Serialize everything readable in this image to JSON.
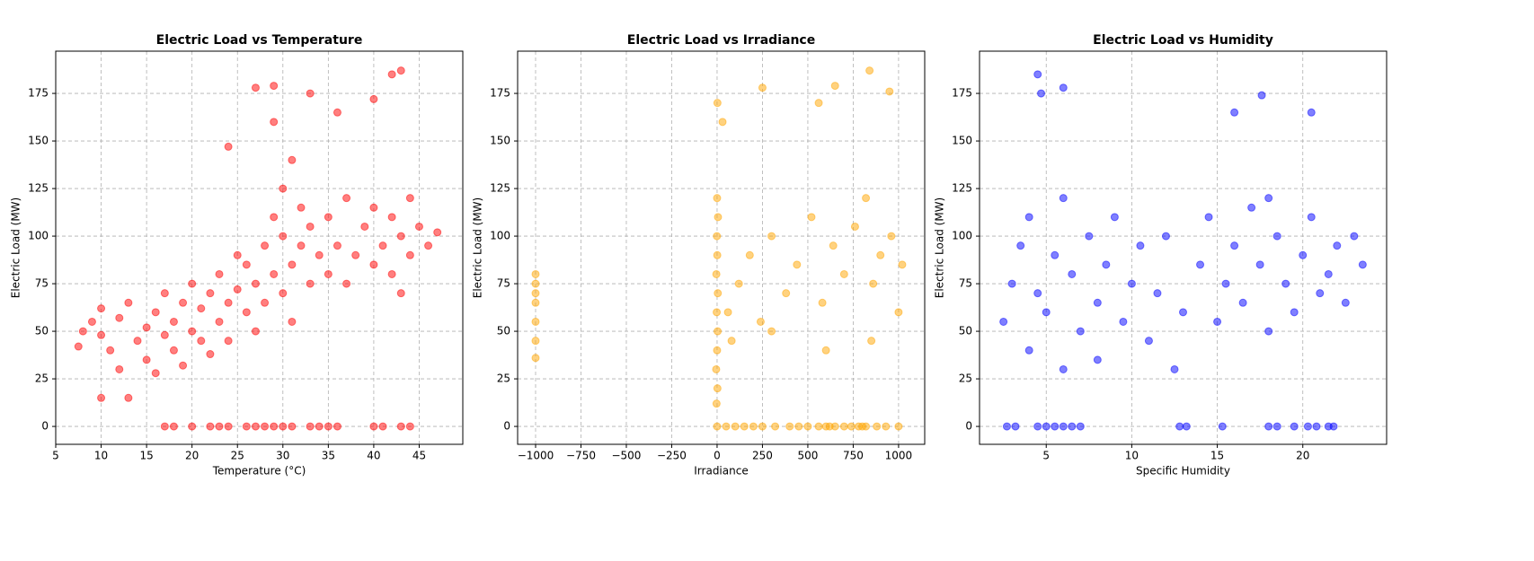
{
  "chart_data": [
    {
      "type": "scatter",
      "title": "Electric Load vs Temperature",
      "xlabel": "Temperature (°C)",
      "ylabel": "Electric Load (MW)",
      "color": "#ff0000",
      "grid": true,
      "xlim": [
        5,
        49.8
      ],
      "ylim": [
        -9.4,
        197.2
      ],
      "xticks": [
        5,
        10,
        15,
        20,
        25,
        30,
        35,
        40,
        45
      ],
      "yticks": [
        0,
        25,
        50,
        75,
        100,
        125,
        150,
        175
      ],
      "x": [
        17,
        18,
        20,
        22,
        23,
        24,
        26,
        27,
        28,
        29,
        30,
        31,
        33,
        34,
        35,
        36,
        40,
        41,
        43,
        44,
        7.5,
        8,
        9,
        10,
        10,
        11,
        12,
        12,
        13,
        14,
        15,
        15,
        16,
        16,
        17,
        17,
        18,
        18,
        19,
        19,
        20,
        20,
        21,
        21,
        22,
        22,
        23,
        23,
        24,
        24,
        25,
        25,
        26,
        26,
        27,
        27,
        28,
        28,
        29,
        29,
        30,
        30,
        30,
        31,
        31,
        32,
        32,
        33,
        33,
        34,
        35,
        35,
        36,
        37,
        37,
        38,
        39,
        40,
        40,
        41,
        42,
        42,
        43,
        43,
        44,
        44,
        45,
        46,
        47,
        10,
        13,
        27,
        29,
        29,
        33,
        36,
        42,
        43,
        40,
        24,
        31
      ],
      "values": [
        0,
        0,
        0,
        0,
        0,
        0,
        0,
        0,
        0,
        0,
        0,
        0,
        0,
        0,
        0,
        0,
        0,
        0,
        0,
        0,
        42,
        50,
        55,
        48,
        62,
        40,
        57,
        30,
        65,
        45,
        52,
        35,
        60,
        28,
        48,
        70,
        40,
        55,
        65,
        32,
        50,
        75,
        45,
        62,
        70,
        38,
        55,
        80,
        65,
        45,
        72,
        90,
        60,
        85,
        75,
        50,
        95,
        65,
        80,
        110,
        70,
        100,
        125,
        85,
        55,
        95,
        115,
        75,
        105,
        90,
        80,
        110,
        95,
        75,
        120,
        90,
        105,
        85,
        115,
        95,
        80,
        110,
        100,
        70,
        90,
        120,
        105,
        95,
        102,
        15,
        15,
        178,
        179,
        160,
        175,
        165,
        185,
        187,
        172,
        147,
        140
      ]
    },
    {
      "type": "scatter",
      "title": "Electric Load vs Irradiance",
      "xlabel": "Irradiance",
      "ylabel": "Electric Load (MW)",
      "color": "#ffa500",
      "grid": true,
      "xlim": [
        -1099,
        1144
      ],
      "ylim": [
        -9.4,
        197.2
      ],
      "xticks": [
        {
          "value": -1000,
          "label": "−1000"
        },
        {
          "value": -750,
          "label": "−750"
        },
        {
          "value": -500,
          "label": "−500"
        },
        {
          "value": -250,
          "label": "−250"
        },
        0,
        250,
        500,
        750,
        1000
      ],
      "yticks": [
        0,
        25,
        50,
        75,
        100,
        125,
        150,
        175
      ],
      "x": [
        -1000,
        -1000,
        -1000,
        -1000,
        -1000,
        -1000,
        -1000,
        -3,
        2,
        -5,
        0,
        3,
        -2,
        4,
        -4,
        1,
        -1,
        5,
        0,
        2,
        0,
        50,
        100,
        150,
        200,
        250,
        320,
        400,
        450,
        500,
        560,
        600,
        620,
        650,
        700,
        740,
        780,
        800,
        820,
        880,
        930,
        1000,
        60,
        120,
        180,
        240,
        300,
        380,
        440,
        520,
        580,
        640,
        700,
        760,
        820,
        860,
        900,
        960,
        1020,
        80,
        300,
        600,
        850,
        1000,
        250,
        650,
        840,
        950,
        560,
        30
      ],
      "values": [
        36,
        45,
        55,
        65,
        70,
        75,
        80,
        12,
        20,
        30,
        40,
        50,
        60,
        70,
        80,
        90,
        100,
        110,
        120,
        170,
        0,
        0,
        0,
        0,
        0,
        0,
        0,
        0,
        0,
        0,
        0,
        0,
        0,
        0,
        0,
        0,
        0,
        0,
        0,
        0,
        0,
        0,
        60,
        75,
        90,
        55,
        100,
        70,
        85,
        110,
        65,
        95,
        80,
        105,
        120,
        75,
        90,
        100,
        85,
        45,
        50,
        40,
        45,
        60,
        178,
        179,
        187,
        176,
        170,
        160
      ]
    },
    {
      "type": "scatter",
      "title": "Electric Load vs Humidity",
      "xlabel": "Specific Humidity",
      "ylabel": "Electric Load (MW)",
      "color": "#0000ff",
      "grid": true,
      "xlim": [
        1.1,
        24.9
      ],
      "ylim": [
        -9.4,
        197.2
      ],
      "xticks": [
        5,
        10,
        15,
        20
      ],
      "yticks": [
        0,
        25,
        50,
        75,
        100,
        125,
        150,
        175
      ],
      "x": [
        2.7,
        3.2,
        4.5,
        5,
        5.5,
        6,
        6.5,
        7,
        12.8,
        13.2,
        15.3,
        18,
        18.5,
        19.5,
        20.3,
        20.8,
        21.5,
        21.8,
        2.5,
        3,
        3.5,
        4,
        4,
        4.5,
        5,
        5.5,
        6,
        6,
        6.5,
        7,
        7.5,
        8,
        8,
        8.5,
        9,
        9.5,
        10,
        10.5,
        11,
        11.5,
        12,
        12.5,
        13,
        14,
        14.5,
        15,
        15.5,
        16,
        16.5,
        17,
        17.5,
        18,
        18,
        18.5,
        19,
        19.5,
        20,
        20.5,
        21,
        21.5,
        22,
        22.5,
        23,
        23.5,
        4.5,
        4.7,
        6,
        17.6,
        20.5,
        16
      ],
      "values": [
        0,
        0,
        0,
        0,
        0,
        0,
        0,
        0,
        0,
        0,
        0,
        0,
        0,
        0,
        0,
        0,
        0,
        0,
        55,
        75,
        95,
        40,
        110,
        70,
        60,
        90,
        30,
        120,
        80,
        50,
        100,
        65,
        35,
        85,
        110,
        55,
        75,
        95,
        45,
        70,
        100,
        30,
        60,
        85,
        110,
        55,
        75,
        95,
        65,
        115,
        85,
        50,
        120,
        100,
        75,
        60,
        90,
        110,
        70,
        80,
        95,
        65,
        100,
        85,
        185,
        175,
        178,
        174,
        165,
        165
      ]
    }
  ]
}
